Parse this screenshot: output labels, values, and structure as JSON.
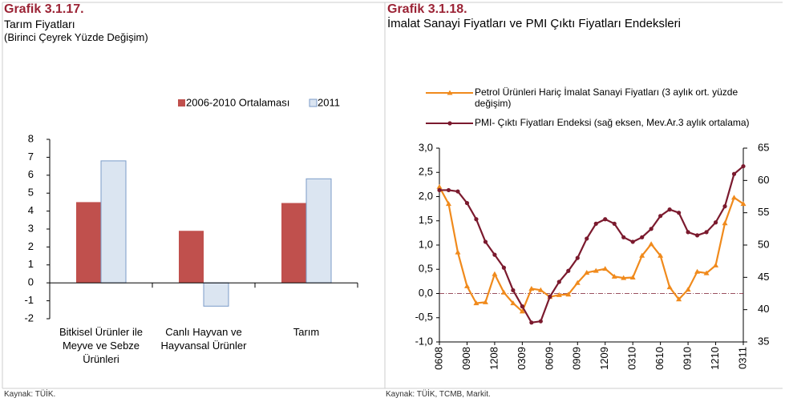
{
  "chart_data": [
    {
      "type": "bar",
      "label": "Grafik 3.1.17.",
      "title": "Tarım Fiyatları",
      "subtitle": "(Birinci Çeyrek Yüzde Değişim)",
      "categories": [
        "Bitkisel Ürünler ile Meyve ve Sebze Ürünleri",
        "Canlı Hayvan ve Hayvansal Ürünler",
        "Tarım"
      ],
      "series": [
        {
          "name": "2006-2010 Ortalaması",
          "color": "#c0504d",
          "values": [
            4.5,
            2.9,
            4.45
          ]
        },
        {
          "name": "2011",
          "color": "#dbe5f1",
          "values": [
            6.8,
            -1.3,
            5.8
          ]
        }
      ],
      "ylim": [
        -2,
        8
      ],
      "yticks": [
        -2,
        -1,
        0,
        1,
        2,
        3,
        4,
        5,
        6,
        7,
        8
      ],
      "source": "Kaynak: TÜİK."
    },
    {
      "type": "line",
      "label": "Grafik 3.1.18.",
      "title": "İmalat Sanayi Fiyatları ve PMI Çıktı Fiyatları Endeksleri",
      "categories": [
        "0608",
        null,
        null,
        "0908",
        null,
        null,
        "1208",
        null,
        null,
        "0309",
        null,
        null,
        "0609",
        null,
        null,
        "0909",
        null,
        null,
        "1209",
        null,
        null,
        "0310",
        null,
        null,
        "0610",
        null,
        null,
        "0910",
        null,
        null,
        "1210",
        null,
        null,
        "0311"
      ],
      "series": [
        {
          "name": "Petrol Ürünleri Hariç İmalat Sanayi Fiyatları (3 aylık ort. yüzde değişim)",
          "color": "#f08a1c",
          "marker": "triangle",
          "values": [
            2.2,
            1.85,
            0.85,
            0.15,
            -0.2,
            -0.18,
            0.4,
            0.02,
            -0.2,
            -0.37,
            0.1,
            0.07,
            -0.07,
            -0.03,
            -0.02,
            0.22,
            0.43,
            0.47,
            0.51,
            0.35,
            0.32,
            0.33,
            0.78,
            1.02,
            0.78,
            0.13,
            -0.12,
            0.08,
            0.45,
            0.42,
            0.58,
            1.45,
            1.98,
            1.85
          ]
        },
        {
          "name": "PMI- Çıktı Fiyatları Endeksi (sağ eksen, Mev.Ar.3 aylık ortalama)",
          "color": "#7b1a2e",
          "marker": "circle",
          "axis": "y2",
          "values": [
            58.5,
            58.5,
            58.3,
            56.5,
            54,
            50.5,
            48.5,
            46.5,
            43,
            40.5,
            38,
            38.2,
            42,
            44.3,
            46,
            48,
            51,
            53.3,
            54,
            53.3,
            51.2,
            50.5,
            51.2,
            52.5,
            54.5,
            55.5,
            55,
            52,
            51.5,
            52,
            53.5,
            56,
            61,
            62.2
          ]
        }
      ],
      "ylim": [
        -1,
        3
      ],
      "yticks": [
        {
          "value": -1,
          "label": "-1,0"
        },
        {
          "value": -0.5,
          "label": "-0,5"
        },
        {
          "value": 0,
          "label": "0,0"
        },
        {
          "value": 0.5,
          "label": "0,5"
        },
        {
          "value": 1,
          "label": "1,0"
        },
        {
          "value": 1.5,
          "label": "1,5"
        },
        {
          "value": 2,
          "label": "2,0"
        },
        {
          "value": 2.5,
          "label": "2,5"
        },
        {
          "value": 3,
          "label": "3,0"
        }
      ],
      "y2lim": [
        35,
        65
      ],
      "y2ticks": [
        35,
        40,
        45,
        50,
        55,
        60,
        65
      ],
      "source": "Kaynak: TÜİK, TCMB, Markit."
    }
  ]
}
